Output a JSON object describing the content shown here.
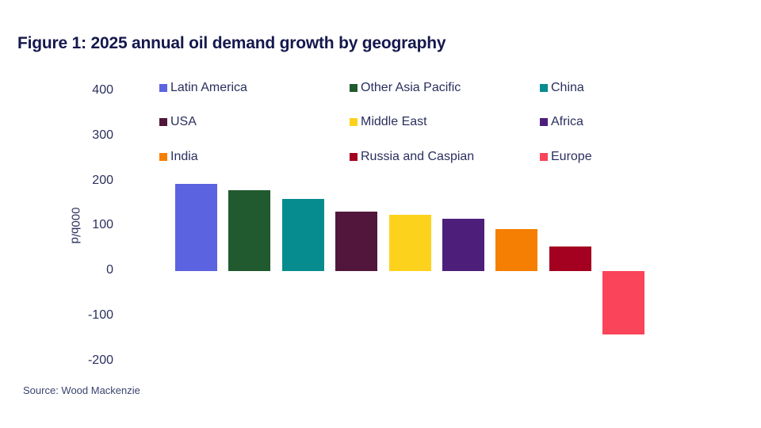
{
  "title": "Figure 1: 2025 annual oil demand growth by geography",
  "source": "Source: Wood Mackenzie",
  "y_axis": {
    "label": "000b/d",
    "ticks": [
      "400",
      "300",
      "200",
      "100",
      "0",
      "-100",
      "-200"
    ]
  },
  "legend": [
    {
      "label": "Latin America",
      "color": "#5b63e0"
    },
    {
      "label": "Other Asia Pacific",
      "color": "#205a2e"
    },
    {
      "label": "China",
      "color": "#068c8f"
    },
    {
      "label": "USA",
      "color": "#52163c"
    },
    {
      "label": "Middle East",
      "color": "#fcd21c"
    },
    {
      "label": "Africa",
      "color": "#4d1f7a"
    },
    {
      "label": "India",
      "color": "#f57f03"
    },
    {
      "label": "Russia and Caspian",
      "color": "#a4001f"
    },
    {
      "label": "Europe",
      "color": "#fa4459"
    }
  ],
  "chart_data": {
    "type": "bar",
    "title": "Figure 1: 2025 annual oil demand growth by geography",
    "xlabel": "",
    "ylabel": "000b/d",
    "ylim": [
      -200,
      400
    ],
    "yticks": [
      400,
      300,
      200,
      100,
      0,
      -100,
      -200
    ],
    "grid": false,
    "legend_position": "top",
    "categories": [
      "Latin America",
      "Other Asia Pacific",
      "China",
      "USA",
      "Middle East",
      "Africa",
      "India",
      "Russia and Caspian",
      "Europe"
    ],
    "values": [
      194,
      180,
      160,
      132,
      125,
      116,
      93,
      55,
      -140
    ],
    "colors": [
      "#5b63e0",
      "#205a2e",
      "#068c8f",
      "#52163c",
      "#fcd21c",
      "#4d1f7a",
      "#f57f03",
      "#a4001f",
      "#fa4459"
    ],
    "source": "Source: Wood Mackenzie"
  }
}
